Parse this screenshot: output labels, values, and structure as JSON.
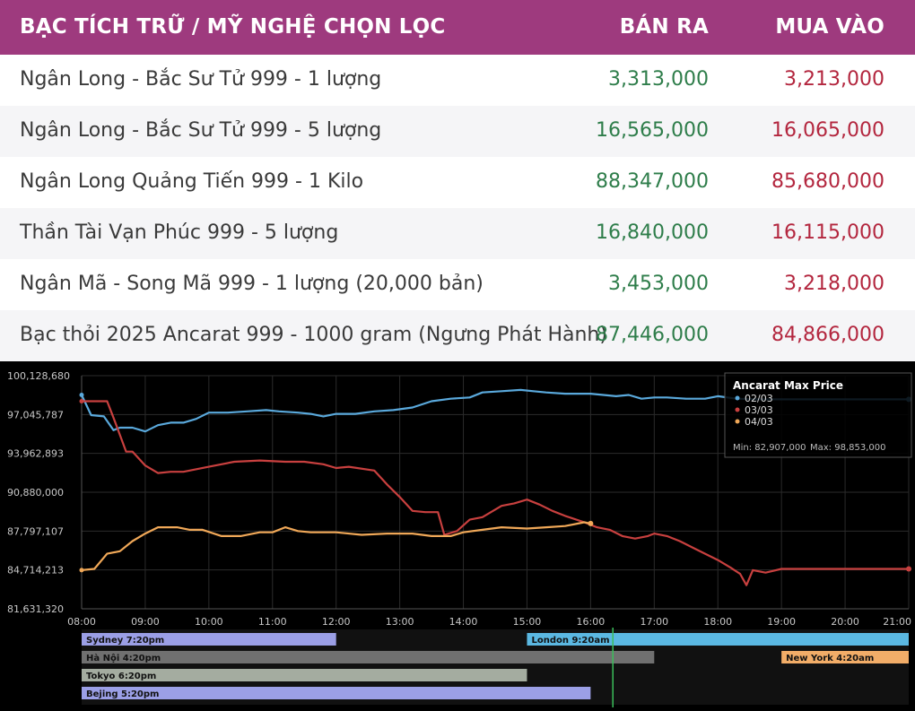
{
  "header": {
    "title": "BẠC TÍCH TRỮ / MỸ NGHỆ CHỌN LỌC",
    "sell_label": "BÁN RA",
    "buy_label": "MUA VÀO"
  },
  "products": [
    {
      "name": "Ngân Long - Bắc Sư Tử  999 - 1 lượng",
      "sell": "3,313,000",
      "buy": "3,213,000"
    },
    {
      "name": "Ngân Long - Bắc Sư Tử  999 - 5 lượng",
      "sell": "16,565,000",
      "buy": "16,065,000"
    },
    {
      "name": "Ngân Long Quảng Tiến 999 - 1 Kilo",
      "sell": "88,347,000",
      "buy": "85,680,000"
    },
    {
      "name": "Thần Tài Vạn Phúc 999 - 5 lượng",
      "sell": "16,840,000",
      "buy": "16,115,000"
    },
    {
      "name": "Ngân Mã - Song Mã 999 - 1 lượng (20,000 bản)",
      "sell": "3,453,000",
      "buy": "3,218,000"
    },
    {
      "name": "Bạc thỏi 2025 Ancarat 999 - 1000 gram (Ngưng Phát Hành)",
      "sell": "87,446,000",
      "buy": "84,866,000"
    }
  ],
  "colors": {
    "header_bg": "#9e3a7e",
    "row_odd": "#ffffff",
    "row_even": "#f5f5f7",
    "sell_text": "#2e7d4a",
    "buy_text": "#b3263e"
  },
  "chart_data": {
    "type": "line",
    "ylim": [
      81631320,
      100128680
    ],
    "y_ticks": [
      "100,128,680",
      "97,045,787",
      "93,962,893",
      "90,880,000",
      "87,797,107",
      "84,714,213",
      "81,631,320"
    ],
    "y_tick_values": [
      100128680,
      97045787,
      93962893,
      90880000,
      87797107,
      84714213,
      81631320
    ],
    "x_ticks": [
      "08:00",
      "09:00",
      "10:00",
      "11:00",
      "12:00",
      "13:00",
      "14:00",
      "15:00",
      "16:00",
      "17:00",
      "18:00",
      "19:00",
      "20:00",
      "21:00"
    ],
    "xlim": [
      8,
      21
    ],
    "series": [
      {
        "name": "02/03",
        "color": "#5aa9dc",
        "x": [
          8.0,
          8.15,
          8.35,
          8.5,
          8.6,
          8.8,
          9.0,
          9.2,
          9.4,
          9.6,
          9.8,
          10.0,
          10.3,
          10.6,
          10.9,
          11.1,
          11.4,
          11.6,
          11.8,
          12.0,
          12.3,
          12.6,
          12.9,
          13.2,
          13.5,
          13.8,
          14.1,
          14.3,
          14.6,
          14.9,
          15.1,
          15.3,
          15.6,
          15.8,
          16.0,
          16.2,
          16.4,
          16.6,
          16.8,
          17.0,
          17.2,
          17.5,
          17.8,
          18.0,
          18.3,
          18.6,
          19.0,
          20.0,
          21.0
        ],
        "values": [
          98600000,
          97000000,
          96900000,
          95800000,
          96000000,
          96000000,
          95700000,
          96200000,
          96400000,
          96400000,
          96700000,
          97200000,
          97200000,
          97300000,
          97400000,
          97300000,
          97200000,
          97100000,
          96900000,
          97100000,
          97100000,
          97300000,
          97400000,
          97600000,
          98100000,
          98300000,
          98400000,
          98800000,
          98900000,
          99000000,
          98900000,
          98800000,
          98700000,
          98700000,
          98700000,
          98600000,
          98500000,
          98600000,
          98300000,
          98400000,
          98400000,
          98300000,
          98300000,
          98500000,
          98300000,
          98250000,
          98250000,
          98250000,
          98250000
        ]
      },
      {
        "name": "03/03",
        "color": "#c8403f",
        "x": [
          8.0,
          8.4,
          8.5,
          8.7,
          8.8,
          9.0,
          9.2,
          9.4,
          9.6,
          10.0,
          10.4,
          10.8,
          11.2,
          11.5,
          11.8,
          12.0,
          12.2,
          12.6,
          12.8,
          13.0,
          13.2,
          13.4,
          13.6,
          13.7,
          13.9,
          14.1,
          14.3,
          14.6,
          14.8,
          15.0,
          15.2,
          15.4,
          15.6,
          15.9,
          16.1,
          16.3,
          16.5,
          16.7,
          16.9,
          17.0,
          17.2,
          17.4,
          17.6,
          17.8,
          18.0,
          18.2,
          18.35,
          18.45,
          18.55,
          18.75,
          19.0,
          19.4,
          20.0,
          21.0
        ],
        "values": [
          98100000,
          98100000,
          96800000,
          94100000,
          94100000,
          93000000,
          92400000,
          92500000,
          92500000,
          92900000,
          93300000,
          93400000,
          93300000,
          93300000,
          93100000,
          92800000,
          92900000,
          92600000,
          91500000,
          90500000,
          89400000,
          89300000,
          89300000,
          87500000,
          87800000,
          88700000,
          88900000,
          89800000,
          90000000,
          90300000,
          89900000,
          89400000,
          89000000,
          88500000,
          88100000,
          87900000,
          87400000,
          87200000,
          87400000,
          87600000,
          87400000,
          87000000,
          86500000,
          86000000,
          85500000,
          84900000,
          84400000,
          83500000,
          84700000,
          84500000,
          84800000,
          84800000,
          84800000,
          84800000
        ]
      },
      {
        "name": "04/03",
        "color": "#f0a858",
        "x": [
          8.0,
          8.2,
          8.4,
          8.6,
          8.8,
          9.0,
          9.2,
          9.5,
          9.7,
          9.9,
          10.2,
          10.5,
          10.8,
          11.0,
          11.2,
          11.4,
          11.6,
          12.0,
          12.4,
          12.8,
          13.2,
          13.5,
          13.8,
          14.0,
          14.3,
          14.6,
          15.0,
          15.3,
          15.6,
          15.9,
          16.0
        ],
        "values": [
          84700000,
          84800000,
          86000000,
          86200000,
          87000000,
          87600000,
          88100000,
          88100000,
          87900000,
          87900000,
          87400000,
          87400000,
          87700000,
          87700000,
          88100000,
          87800000,
          87700000,
          87700000,
          87500000,
          87600000,
          87600000,
          87400000,
          87400000,
          87700000,
          87900000,
          88100000,
          88000000,
          88100000,
          88200000,
          88500000,
          88400000
        ]
      }
    ],
    "legend": {
      "title": "Ancarat Max Price",
      "min_text": "Min: 82,907,000",
      "max_text": "Max: 98,853,000",
      "placement": "top-right"
    },
    "sessions": [
      {
        "label": "Sydney 7:20pm",
        "start": 8.0,
        "end": 12.0,
        "color": "#9b9fe6"
      },
      {
        "label": "London 9:20am",
        "start": 15.0,
        "end": 21.0,
        "color": "#5bb8e2"
      },
      {
        "label": "Hà Nội 4:20pm",
        "start": 8.0,
        "end": 17.0,
        "color": "#707070"
      },
      {
        "label": "New York 4:20am",
        "start": 19.0,
        "end": 21.0,
        "color": "#f2ad68"
      },
      {
        "label": "Tokyo 6:20pm",
        "start": 8.0,
        "end": 15.0,
        "color": "#a4aca0"
      },
      {
        "label": "Bejing 5:20pm",
        "start": 8.0,
        "end": 16.0,
        "color": "#9b9fe6"
      }
    ],
    "now_time": 16.35
  }
}
